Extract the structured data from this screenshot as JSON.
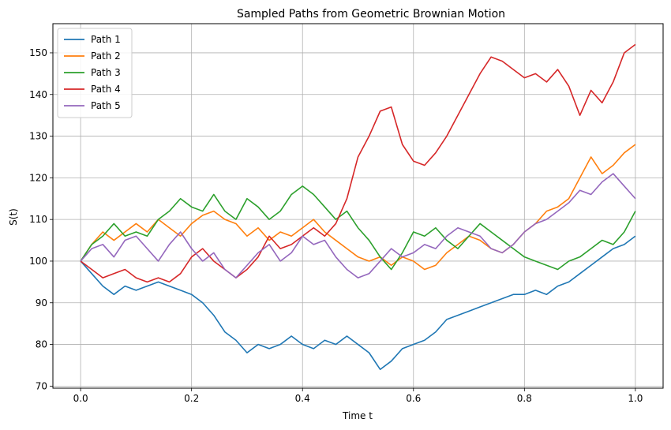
{
  "chart_data": {
    "type": "line",
    "title": "Sampled Paths from Geometric Brownian Motion",
    "xlabel": "Time t",
    "ylabel": "S(t)",
    "xlim": [
      -0.05,
      1.05
    ],
    "ylim": [
      69.5,
      157
    ],
    "xticks": [
      0.0,
      0.2,
      0.4,
      0.6,
      0.8,
      1.0
    ],
    "xtick_labels": [
      "0.0",
      "0.2",
      "0.4",
      "0.6",
      "0.8",
      "1.0"
    ],
    "yticks": [
      70,
      80,
      90,
      100,
      110,
      120,
      130,
      140,
      150
    ],
    "ytick_labels": [
      "70",
      "80",
      "90",
      "100",
      "110",
      "120",
      "130",
      "140",
      "150"
    ],
    "grid": true,
    "legend": "top-left",
    "series": [
      {
        "name": "Path 1",
        "color": "#1f77b4",
        "x": [
          0.0,
          0.02,
          0.04,
          0.06,
          0.08,
          0.1,
          0.12,
          0.14,
          0.16,
          0.18,
          0.2,
          0.22,
          0.24,
          0.26,
          0.28,
          0.3,
          0.32,
          0.34,
          0.36,
          0.38,
          0.4,
          0.42,
          0.44,
          0.46,
          0.48,
          0.5,
          0.52,
          0.54,
          0.56,
          0.58,
          0.6,
          0.62,
          0.64,
          0.66,
          0.68,
          0.7,
          0.72,
          0.74,
          0.76,
          0.78,
          0.8,
          0.82,
          0.84,
          0.86,
          0.88,
          0.9,
          0.92,
          0.94,
          0.96,
          0.98,
          1.0
        ],
        "values": [
          100,
          97,
          94,
          92,
          94,
          93,
          94,
          95,
          94,
          93,
          92,
          90,
          87,
          83,
          81,
          78,
          80,
          79,
          80,
          82,
          80,
          79,
          81,
          80,
          82,
          80,
          78,
          74,
          76,
          79,
          80,
          81,
          83,
          86,
          87,
          88,
          89,
          90,
          91,
          92,
          92,
          93,
          92,
          94,
          95,
          97,
          99,
          101,
          103,
          104,
          106
        ]
      },
      {
        "name": "Path 2",
        "color": "#ff7f0e",
        "x": [
          0.0,
          0.02,
          0.04,
          0.06,
          0.08,
          0.1,
          0.12,
          0.14,
          0.16,
          0.18,
          0.2,
          0.22,
          0.24,
          0.26,
          0.28,
          0.3,
          0.32,
          0.34,
          0.36,
          0.38,
          0.4,
          0.42,
          0.44,
          0.46,
          0.48,
          0.5,
          0.52,
          0.54,
          0.56,
          0.58,
          0.6,
          0.62,
          0.64,
          0.66,
          0.68,
          0.7,
          0.72,
          0.74,
          0.76,
          0.78,
          0.8,
          0.82,
          0.84,
          0.86,
          0.88,
          0.9,
          0.92,
          0.94,
          0.96,
          0.98,
          1.0
        ],
        "values": [
          100,
          104,
          107,
          105,
          107,
          109,
          107,
          110,
          108,
          106,
          109,
          111,
          112,
          110,
          109,
          106,
          108,
          105,
          107,
          106,
          108,
          110,
          107,
          105,
          103,
          101,
          100,
          101,
          99,
          101,
          100,
          98,
          99,
          102,
          104,
          106,
          105,
          103,
          102,
          104,
          107,
          109,
          112,
          113,
          115,
          120,
          125,
          121,
          123,
          126,
          128
        ]
      },
      {
        "name": "Path 3",
        "color": "#2ca02c",
        "x": [
          0.0,
          0.02,
          0.04,
          0.06,
          0.08,
          0.1,
          0.12,
          0.14,
          0.16,
          0.18,
          0.2,
          0.22,
          0.24,
          0.26,
          0.28,
          0.3,
          0.32,
          0.34,
          0.36,
          0.38,
          0.4,
          0.42,
          0.44,
          0.46,
          0.48,
          0.5,
          0.52,
          0.54,
          0.56,
          0.58,
          0.6,
          0.62,
          0.64,
          0.66,
          0.68,
          0.7,
          0.72,
          0.74,
          0.76,
          0.78,
          0.8,
          0.82,
          0.84,
          0.86,
          0.88,
          0.9,
          0.92,
          0.94,
          0.96,
          0.98,
          1.0
        ],
        "values": [
          100,
          104,
          106,
          109,
          106,
          107,
          106,
          110,
          112,
          115,
          113,
          112,
          116,
          112,
          110,
          115,
          113,
          110,
          112,
          116,
          118,
          116,
          113,
          110,
          112,
          108,
          105,
          101,
          98,
          102,
          107,
          106,
          108,
          105,
          103,
          106,
          109,
          107,
          105,
          103,
          101,
          100,
          99,
          98,
          100,
          101,
          103,
          105,
          104,
          107,
          112
        ]
      },
      {
        "name": "Path 4",
        "color": "#d62728",
        "x": [
          0.0,
          0.02,
          0.04,
          0.06,
          0.08,
          0.1,
          0.12,
          0.14,
          0.16,
          0.18,
          0.2,
          0.22,
          0.24,
          0.26,
          0.28,
          0.3,
          0.32,
          0.34,
          0.36,
          0.38,
          0.4,
          0.42,
          0.44,
          0.46,
          0.48,
          0.5,
          0.52,
          0.54,
          0.56,
          0.58,
          0.6,
          0.62,
          0.64,
          0.66,
          0.68,
          0.7,
          0.72,
          0.74,
          0.76,
          0.78,
          0.8,
          0.82,
          0.84,
          0.86,
          0.88,
          0.9,
          0.92,
          0.94,
          0.96,
          0.98,
          1.0
        ],
        "values": [
          100,
          98,
          96,
          97,
          98,
          96,
          95,
          96,
          95,
          97,
          101,
          103,
          100,
          98,
          96,
          98,
          101,
          106,
          103,
          104,
          106,
          108,
          106,
          109,
          115,
          125,
          130,
          136,
          137,
          128,
          124,
          123,
          126,
          130,
          135,
          140,
          145,
          149,
          148,
          146,
          144,
          145,
          143,
          146,
          142,
          135,
          141,
          138,
          143,
          150,
          152
        ]
      },
      {
        "name": "Path 5",
        "color": "#9467bd",
        "x": [
          0.0,
          0.02,
          0.04,
          0.06,
          0.08,
          0.1,
          0.12,
          0.14,
          0.16,
          0.18,
          0.2,
          0.22,
          0.24,
          0.26,
          0.28,
          0.3,
          0.32,
          0.34,
          0.36,
          0.38,
          0.4,
          0.42,
          0.44,
          0.46,
          0.48,
          0.5,
          0.52,
          0.54,
          0.56,
          0.58,
          0.6,
          0.62,
          0.64,
          0.66,
          0.68,
          0.7,
          0.72,
          0.74,
          0.76,
          0.78,
          0.8,
          0.82,
          0.84,
          0.86,
          0.88,
          0.9,
          0.92,
          0.94,
          0.96,
          0.98,
          1.0
        ],
        "values": [
          100,
          103,
          104,
          101,
          105,
          106,
          103,
          100,
          104,
          107,
          103,
          100,
          102,
          98,
          96,
          99,
          102,
          104,
          100,
          102,
          106,
          104,
          105,
          101,
          98,
          96,
          97,
          100,
          103,
          101,
          102,
          104,
          103,
          106,
          108,
          107,
          106,
          103,
          102,
          104,
          107,
          109,
          110,
          112,
          114,
          117,
          116,
          119,
          121,
          118,
          115
        ]
      }
    ]
  }
}
